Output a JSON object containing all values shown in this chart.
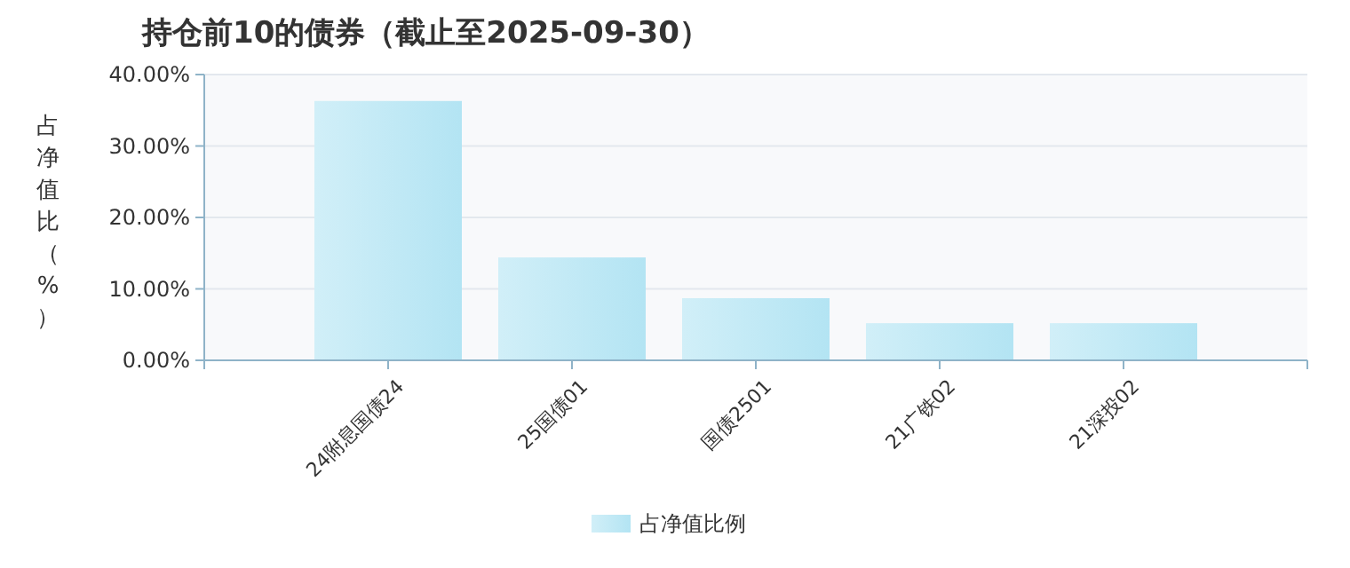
{
  "chart_data": {
    "type": "bar",
    "title": "持仓前10的债券（截止至2025-09-30）",
    "ylabel": "占净值比（%）",
    "categories": [
      "24附息国债24",
      "25国债01",
      "国债2501",
      "21广铁02",
      "21深投02"
    ],
    "series": [
      {
        "name": "占净值比例",
        "color": "#b3e4f3",
        "values": [
          36.3,
          14.4,
          8.7,
          5.2,
          5.2
        ]
      }
    ],
    "ylim": [
      0,
      40
    ],
    "yticks": [
      {
        "value": 0,
        "label": "0.00%"
      },
      {
        "value": 10,
        "label": "10.00%"
      },
      {
        "value": 20,
        "label": "20.00%"
      },
      {
        "value": 30,
        "label": "30.00%"
      },
      {
        "value": 40,
        "label": "40.00%"
      }
    ],
    "grid": "y",
    "legend": "bottom"
  }
}
